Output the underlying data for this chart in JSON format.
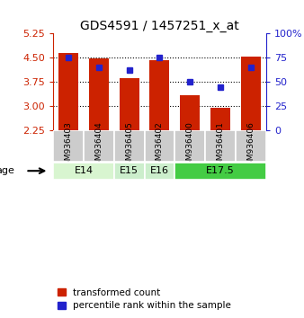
{
  "title": "GDS4591 / 1457251_x_at",
  "samples": [
    "GSM936403",
    "GSM936404",
    "GSM936405",
    "GSM936402",
    "GSM936400",
    "GSM936401",
    "GSM936406"
  ],
  "transformed_counts": [
    4.65,
    4.47,
    3.87,
    4.42,
    3.35,
    2.95,
    4.52
  ],
  "percentile_ranks": [
    75,
    65,
    62,
    75,
    50,
    45,
    65
  ],
  "ylim_left": [
    2.25,
    5.25
  ],
  "ylim_right": [
    0,
    100
  ],
  "yticks_left": [
    2.25,
    3.0,
    3.75,
    4.5,
    5.25
  ],
  "yticks_right": [
    0,
    25,
    50,
    75,
    100
  ],
  "bar_color": "#cc2200",
  "dot_color": "#2222cc",
  "age_groups": [
    {
      "label": "E14",
      "spans": [
        0,
        2
      ],
      "color": "#d8f5d0"
    },
    {
      "label": "E15",
      "spans": [
        2,
        3
      ],
      "color": "#cceecc"
    },
    {
      "label": "E16",
      "spans": [
        3,
        4
      ],
      "color": "#cceecc"
    },
    {
      "label": "E17.5",
      "spans": [
        4,
        7
      ],
      "color": "#44cc44"
    }
  ],
  "right_axis_color": "#2222cc",
  "left_axis_color": "#cc2200",
  "bar_bottom": 2.25,
  "sample_box_color": "#cccccc",
  "legend_items": [
    "transformed count",
    "percentile rank within the sample"
  ]
}
